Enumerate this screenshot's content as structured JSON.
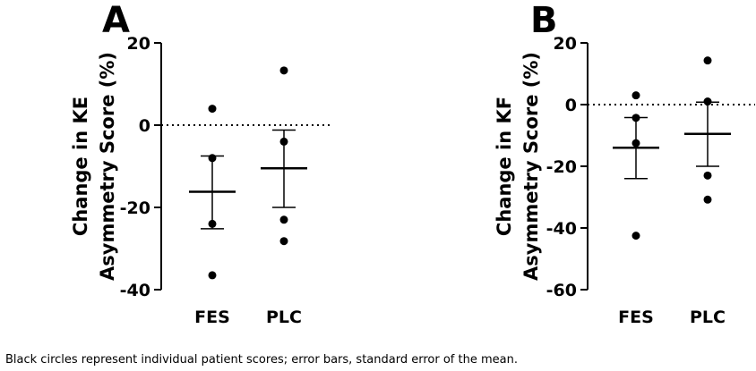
{
  "caption": "Black circles represent individual patient scores; error bars, standard error of the mean.",
  "chart_data": [
    {
      "type": "scatter",
      "panel": "A",
      "ylabel_lines": [
        "Change in KE",
        "Asymmetry Score (%)"
      ],
      "categories": [
        "FES",
        "PLC"
      ],
      "ylim": [
        -40,
        20
      ],
      "yticks": [
        20,
        0,
        -20,
        -40
      ],
      "ytick_labels": [
        "20",
        "0",
        "-20",
        "-40"
      ],
      "reference_line": 0,
      "series": [
        {
          "category": "FES",
          "points": [
            4,
            -8,
            -24,
            -36.5
          ],
          "mean": -16.2,
          "sem_upper": -7.5,
          "sem_lower": -25.2
        },
        {
          "category": "PLC",
          "points": [
            13.3,
            -4,
            -23,
            -28.2
          ],
          "mean": -10.5,
          "sem_upper": -1.2,
          "sem_lower": -20
        }
      ],
      "grid": false,
      "marker_color": "#000000"
    },
    {
      "type": "scatter",
      "panel": "B",
      "ylabel_lines": [
        "Change in KF",
        "Asymmetry Score (%)"
      ],
      "categories": [
        "FES",
        "PLC"
      ],
      "ylim": [
        -60,
        20
      ],
      "yticks": [
        20,
        0,
        -20,
        -40,
        -60
      ],
      "ytick_labels": [
        "20",
        "0",
        "-20",
        "-40",
        "-60"
      ],
      "reference_line": 0,
      "series": [
        {
          "category": "FES",
          "points": [
            3,
            -4.3,
            -12.5,
            -42.5
          ],
          "mean": -14,
          "sem_upper": -4.2,
          "sem_lower": -24
        },
        {
          "category": "PLC",
          "points": [
            14.3,
            1,
            -23,
            -30.8
          ],
          "mean": -9.5,
          "sem_upper": 0.8,
          "sem_lower": -20
        }
      ],
      "grid": false,
      "marker_color": "#000000"
    }
  ]
}
